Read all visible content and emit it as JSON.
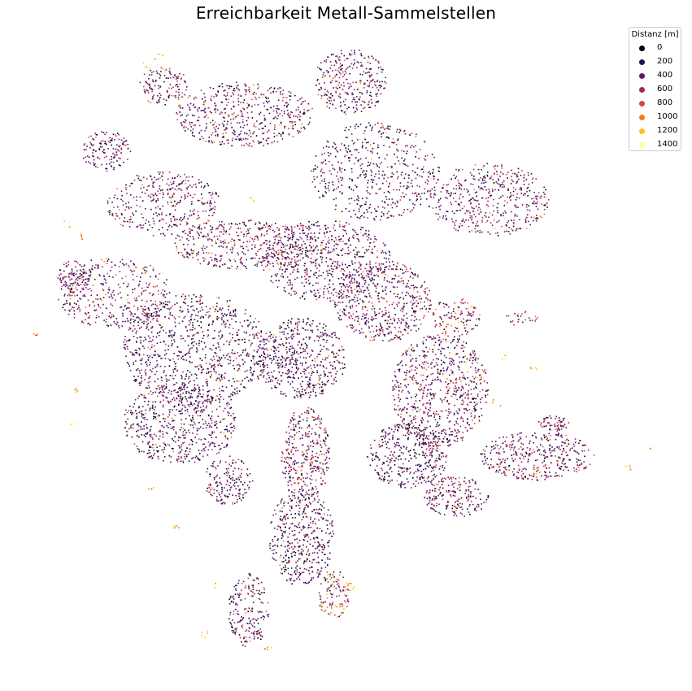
{
  "map": {
    "title": "Erreichbarkeit Metall-Sammelstellen"
  },
  "legend": {
    "title": "Distanz [m]",
    "items": [
      {
        "label": "0",
        "color": "#000004"
      },
      {
        "label": "200",
        "color": "#280b54"
      },
      {
        "label": "400",
        "color": "#65156e"
      },
      {
        "label": "600",
        "color": "#9f2a63"
      },
      {
        "label": "800",
        "color": "#d44842"
      },
      {
        "label": "1000",
        "color": "#f57d15"
      },
      {
        "label": "1200",
        "color": "#fac228"
      },
      {
        "label": "1400",
        "color": "#fcffa4"
      }
    ]
  }
}
